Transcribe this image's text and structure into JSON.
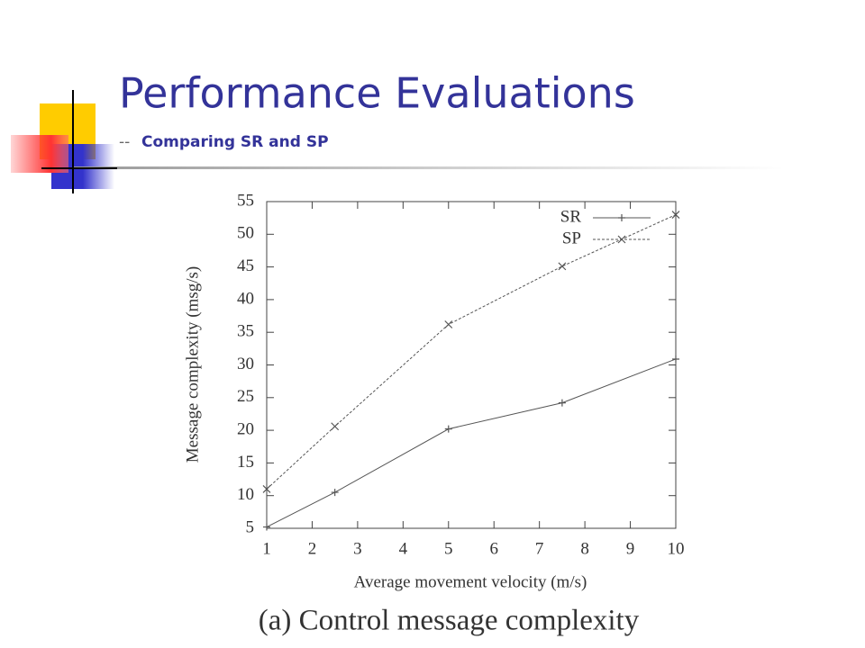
{
  "slide": {
    "title": "Performance Evaluations",
    "dash": "--",
    "subtitle": "Comparing SR and SP"
  },
  "chart_data": {
    "type": "line",
    "x_label": "Average movement velocity (m/s)",
    "y_label": "Message complexity (msg/s)",
    "caption": "(a) Control message complexity",
    "x": [
      1,
      2.5,
      5,
      7.5,
      10
    ],
    "series": [
      {
        "name": "SR",
        "color": "#555555",
        "dash": false,
        "marker": "plus",
        "values": [
          5.2,
          10.5,
          20.2,
          24.2,
          30.9
        ]
      },
      {
        "name": "SP",
        "color": "#555555",
        "dash": true,
        "marker": "cross",
        "values": [
          11,
          20.6,
          36.2,
          45.1,
          53
        ]
      }
    ],
    "xlim": [
      1,
      10
    ],
    "xticks": [
      1,
      2,
      3,
      4,
      5,
      6,
      7,
      8,
      9,
      10
    ],
    "ylim": [
      5,
      55
    ],
    "yticks": [
      5,
      10,
      15,
      20,
      25,
      30,
      35,
      40,
      45,
      50,
      55
    ],
    "grid": false,
    "legend": "top-right"
  }
}
